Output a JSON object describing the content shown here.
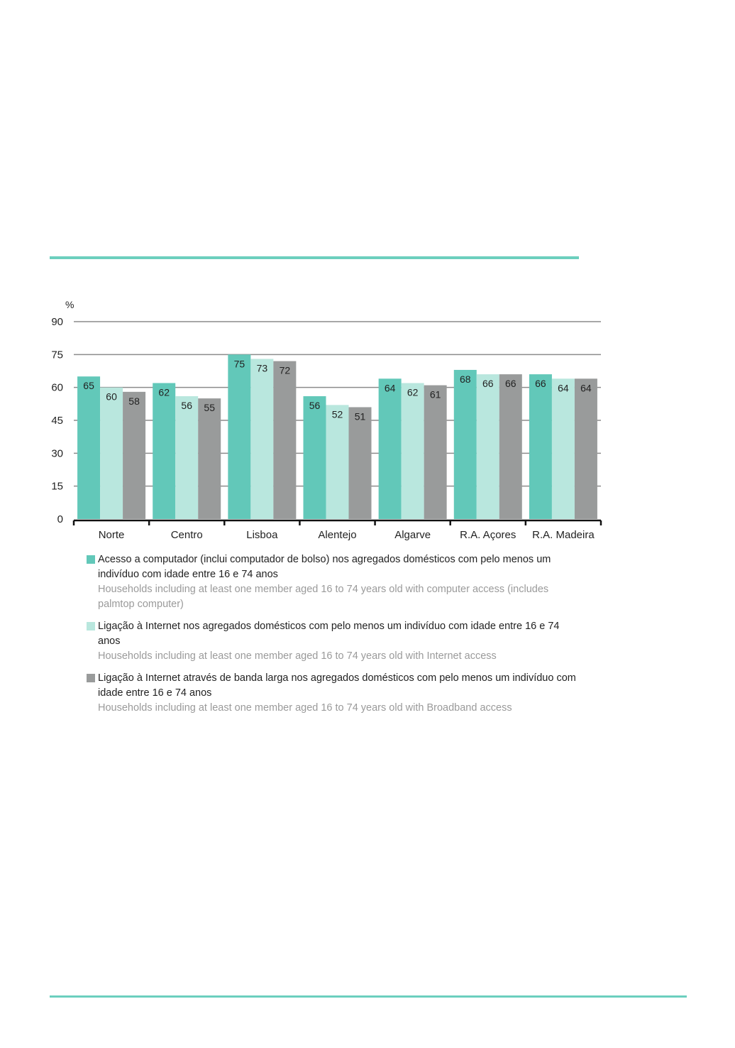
{
  "chart_data": {
    "type": "bar",
    "ylabel": "%",
    "ylim": [
      0,
      90
    ],
    "yticks": [
      0,
      15,
      30,
      45,
      60,
      75,
      90
    ],
    "grid": true,
    "categories": [
      "Norte",
      "Centro",
      "Lisboa",
      "Alentejo",
      "Algarve",
      "R.A. Açores",
      "R.A. Madeira"
    ],
    "series": [
      {
        "name": "Acesso a computador (inclui computador de bolso) nos agregados domésticos com pelo menos um indivíduo com idade entre 16 e 74 anos",
        "name_en": "Households including at least one member aged 16 to 74 years old with computer access (includes palmtop computer)",
        "color": "#62c8b9",
        "values": [
          65,
          62,
          75,
          56,
          64,
          68,
          66
        ]
      },
      {
        "name": "Ligação à Internet nos agregados domésticos com pelo menos um indivíduo com idade entre 16 e 74 anos",
        "name_en": "Households including at least one member aged 16 to 74 years old with Internet access",
        "color": "#b9e7de",
        "values": [
          60,
          56,
          73,
          52,
          62,
          66,
          64
        ]
      },
      {
        "name": "Ligação à Internet através de banda larga nos agregados domésticos com pelo menos um indivíduo com idade entre 16 e 74 anos",
        "name_en": "Households including at least one member aged 16 to 74 years old with Broadband access",
        "color": "#999b9b",
        "values": [
          58,
          55,
          72,
          51,
          61,
          66,
          64
        ]
      }
    ],
    "legend_position": "bottom"
  }
}
